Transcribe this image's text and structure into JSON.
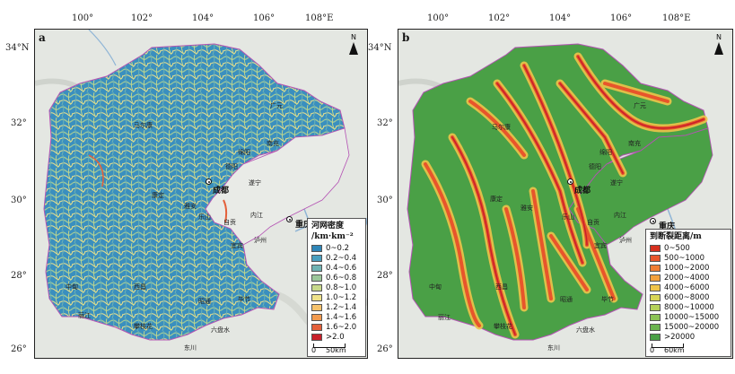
{
  "axes": {
    "lon_ticks": [
      "100°",
      "102°",
      "104°",
      "106°",
      "108°E"
    ],
    "lat_ticks": [
      "34°N",
      "32°",
      "30°",
      "28°",
      "26°"
    ]
  },
  "panel_a": {
    "label": "a",
    "north": "N",
    "legend": {
      "title_line1": "河网密度",
      "title_line2": "/km·km⁻²",
      "classes": [
        {
          "label": "0~0.2",
          "color": "#2f86b8"
        },
        {
          "label": "0.2~0.4",
          "color": "#4a9fbf"
        },
        {
          "label": "0.4~0.6",
          "color": "#6fb3b3"
        },
        {
          "label": "0.6~0.8",
          "color": "#9cc79a"
        },
        {
          "label": "0.8~1.0",
          "color": "#c8d98b"
        },
        {
          "label": "1.0~1.2",
          "color": "#efe28a"
        },
        {
          "label": "1.2~1.4",
          "color": "#f5c26c"
        },
        {
          "label": "1.4~1.6",
          "color": "#f29a4e"
        },
        {
          "label": "1.6~2.0",
          "color": "#e4603a"
        },
        {
          "label": ">2.0",
          "color": "#c8202a"
        }
      ],
      "scale_start": "0",
      "scale_end": "50km"
    }
  },
  "panel_b": {
    "label": "b",
    "north": "N",
    "legend": {
      "title": "到断裂距离/m",
      "classes": [
        {
          "label": "0~500",
          "color": "#d7301f"
        },
        {
          "label": "500~1000",
          "color": "#e8552b"
        },
        {
          "label": "1000~2000",
          "color": "#f07d34"
        },
        {
          "label": "2000~4000",
          "color": "#f3a13d"
        },
        {
          "label": "4000~6000",
          "color": "#efc44a"
        },
        {
          "label": "6000~8000",
          "color": "#d8d555"
        },
        {
          "label": "8000~10000",
          "color": "#b5d15a"
        },
        {
          "label": "10000~15000",
          "color": "#8cc456"
        },
        {
          "label": "15000~20000",
          "color": "#6bb44f"
        },
        {
          "label": ">20000",
          "color": "#4aa046"
        }
      ],
      "scale_start": "0",
      "scale_end": "60km"
    }
  },
  "cities": {
    "chengdu": "成都",
    "chongqing": "重庆",
    "mianyang": "绵阳",
    "deyang": "德阳",
    "nanchong": "南充",
    "suining": "遂宁",
    "guangyuan": "广元",
    "bazhong": "巴中",
    "dazhou": "达州",
    "leshan": "乐山",
    "zigong": "自贡",
    "neijiang": "内江",
    "yibin": "宜宾",
    "luzhou": "泸州",
    "yaan": "雅安",
    "kangding": "康定",
    "maerkang": "马尔康",
    "xichang": "西昌",
    "panzhihua": "攀枝花",
    "zhaotong": "昭通",
    "bijie": "毕节",
    "liupanshui": "六盘水",
    "lijiang": "丽江",
    "zhongdian": "中甸",
    "dongchuan": "东川",
    "meishan": "眉山"
  }
}
